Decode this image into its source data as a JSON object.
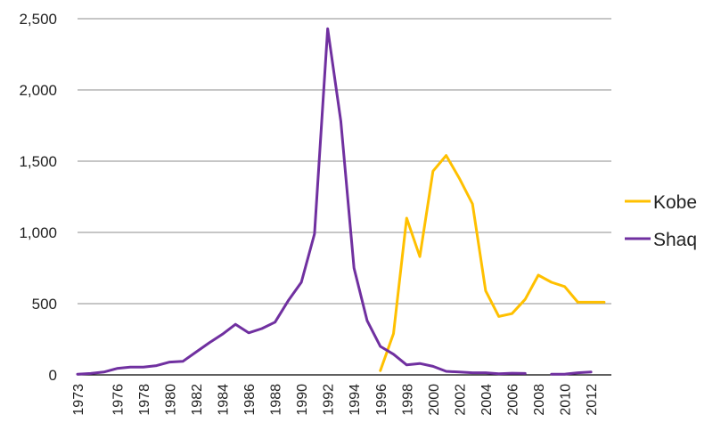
{
  "chart_data": {
    "type": "line",
    "title": "",
    "xlabel": "",
    "ylabel": "",
    "ylim": [
      0,
      2500
    ],
    "y_ticks": [
      0,
      500,
      1000,
      1500,
      2000,
      2500
    ],
    "y_tick_labels": [
      "0",
      "500",
      "1,000",
      "1,500",
      "2,000",
      "2,500"
    ],
    "x_tick_labels": [
      "1973",
      "1976",
      "1978",
      "1980",
      "1982",
      "1984",
      "1986",
      "1988",
      "1990",
      "1992",
      "1994",
      "1996",
      "1998",
      "2000",
      "2002",
      "2004",
      "2006",
      "2008",
      "2010",
      "2012"
    ],
    "grid": "horizontal",
    "legend_position": "right",
    "series": [
      {
        "name": "Kobe",
        "color": "#FFC000",
        "x": [
          1996,
          1997,
          1998,
          1999,
          2000,
          2001,
          2002,
          2003,
          2004,
          2005,
          2006,
          2007,
          2008,
          2009,
          2010,
          2011,
          2012,
          2013
        ],
        "values": [
          30,
          290,
          1100,
          830,
          1430,
          1540,
          1380,
          1200,
          590,
          410,
          430,
          530,
          700,
          650,
          620,
          510,
          510,
          510
        ]
      },
      {
        "name": "Shaq",
        "color": "#7030A0",
        "x": [
          1973,
          1974,
          1975,
          1976,
          1977,
          1978,
          1979,
          1980,
          1981,
          1982,
          1983,
          1984,
          1985,
          1986,
          1987,
          1988,
          1989,
          1990,
          1991,
          1992,
          1993,
          1994,
          1995,
          1996,
          1997,
          1998,
          1999,
          2000,
          2001,
          2002,
          2003,
          2004,
          2005,
          2006,
          2007,
          2008,
          2009,
          2010,
          2011,
          2012,
          2013
        ],
        "values": [
          5,
          10,
          20,
          45,
          55,
          55,
          65,
          90,
          95,
          160,
          225,
          285,
          355,
          295,
          325,
          370,
          520,
          650,
          990,
          2430,
          1780,
          750,
          380,
          200,
          145,
          70,
          80,
          60,
          25,
          20,
          15,
          15,
          8,
          12,
          10,
          null,
          5,
          5,
          15,
          20,
          null
        ]
      }
    ]
  }
}
